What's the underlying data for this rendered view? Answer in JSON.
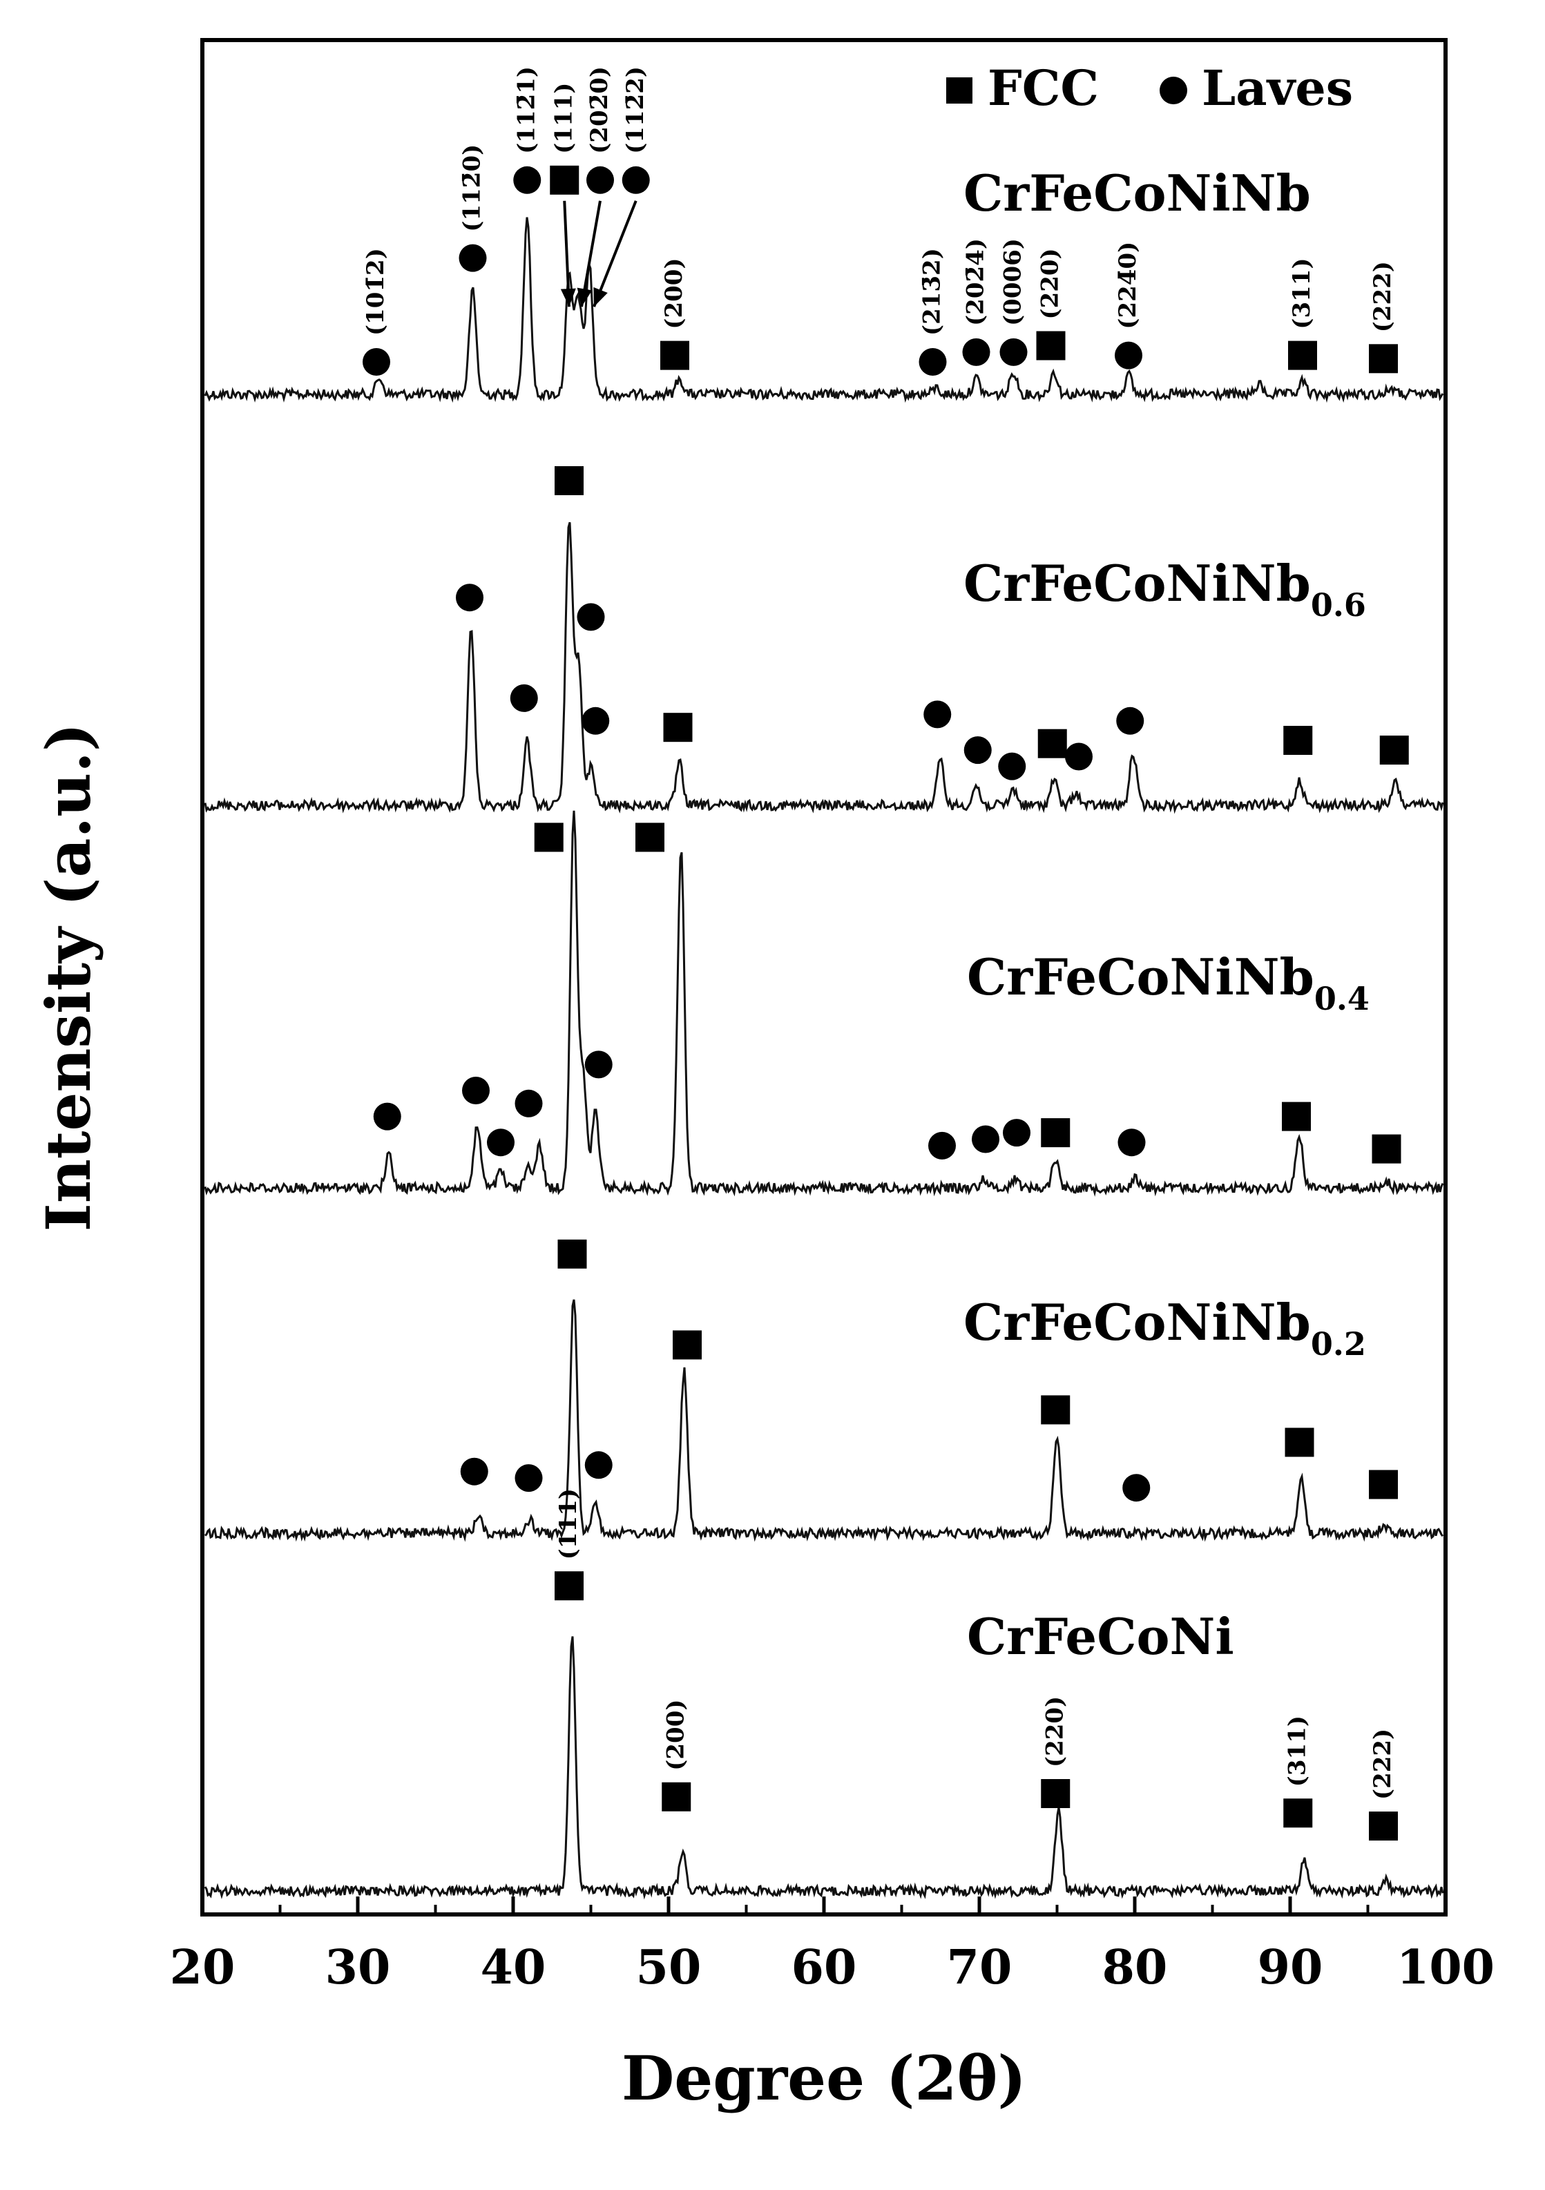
{
  "chart_data": {
    "type": "line",
    "xlabel": "Degree (2θ)",
    "ylabel": "Intensity (a.u.)",
    "xlim": [
      20,
      100
    ],
    "xticks": [
      "20",
      "30",
      "40",
      "50",
      "60",
      "70",
      "80",
      "90",
      "100"
    ],
    "xtick_values": [
      20,
      30,
      40,
      50,
      60,
      70,
      80,
      90,
      100
    ],
    "y_ticks_shown": false,
    "legend": {
      "placement": "top-right",
      "items": [
        {
          "marker": "square",
          "label": "FCC"
        },
        {
          "marker": "circle",
          "label": "Laves"
        }
      ]
    },
    "series": [
      {
        "name": "CrFeCoNiNb",
        "name_parts": {
          "base": "CrFeCoNiNb",
          "sub": ""
        },
        "peaks": [
          {
            "x": 31.4,
            "h": 0.05
          },
          {
            "x": 37.4,
            "h": 0.32
          },
          {
            "x": 40.9,
            "h": 0.55
          },
          {
            "x": 43.6,
            "h": 0.36
          },
          {
            "x": 44.2,
            "h": 0.3
          },
          {
            "x": 44.9,
            "h": 0.4
          },
          {
            "x": 50.7,
            "h": 0.05
          },
          {
            "x": 67.2,
            "h": 0.02
          },
          {
            "x": 69.8,
            "h": 0.05
          },
          {
            "x": 72.2,
            "h": 0.07
          },
          {
            "x": 74.8,
            "h": 0.07
          },
          {
            "x": 79.6,
            "h": 0.06
          },
          {
            "x": 88.0,
            "h": 0.03
          },
          {
            "x": 90.8,
            "h": 0.04
          },
          {
            "x": 96.5,
            "h": 0.02
          }
        ],
        "markers": [
          {
            "type": "circle",
            "x": 31.2,
            "y": 0.1,
            "label": "(101̄2)"
          },
          {
            "type": "circle",
            "x": 37.4,
            "y": 0.42,
            "label": "(112̄0)"
          },
          {
            "type": "circle",
            "x": 40.9,
            "y": 0.66,
            "label": "(112̄1)"
          },
          {
            "type": "square",
            "x": 43.3,
            "y": 0.66,
            "label": "(111)"
          },
          {
            "type": "circle",
            "x": 45.6,
            "y": 0.66,
            "label": "(202̄0)"
          },
          {
            "type": "circle",
            "x": 47.9,
            "y": 0.66,
            "label": "(112̄2)"
          },
          {
            "type": "square",
            "x": 50.4,
            "y": 0.12,
            "label": "(200)"
          },
          {
            "type": "circle",
            "x": 67.0,
            "y": 0.1,
            "label": "(213̄2)"
          },
          {
            "type": "circle",
            "x": 69.8,
            "y": 0.13,
            "label": "(202̄4)"
          },
          {
            "type": "circle",
            "x": 72.2,
            "y": 0.13,
            "label": "(0006)"
          },
          {
            "type": "square",
            "x": 74.6,
            "y": 0.15,
            "label": "(220)"
          },
          {
            "type": "circle",
            "x": 79.6,
            "y": 0.12,
            "label": "(224̄0)"
          },
          {
            "type": "square",
            "x": 90.8,
            "y": 0.12,
            "label": "(311)"
          },
          {
            "type": "square",
            "x": 96.0,
            "y": 0.11,
            "label": "(222)"
          }
        ],
        "arrows": [
          {
            "from_x": 43.3,
            "to_x": 43.6
          },
          {
            "from_x": 45.6,
            "to_x": 44.4
          },
          {
            "from_x": 47.9,
            "to_x": 45.2
          }
        ]
      },
      {
        "name": "CrFeCoNiNb0.6",
        "name_parts": {
          "base": "CrFeCoNiNb",
          "sub": "0.6"
        },
        "peaks": [
          {
            "x": 37.3,
            "h": 0.54
          },
          {
            "x": 40.9,
            "h": 0.2
          },
          {
            "x": 43.6,
            "h": 0.88
          },
          {
            "x": 44.2,
            "h": 0.45
          },
          {
            "x": 45.0,
            "h": 0.12
          },
          {
            "x": 50.7,
            "h": 0.13
          },
          {
            "x": 67.5,
            "h": 0.14
          },
          {
            "x": 69.8,
            "h": 0.06
          },
          {
            "x": 72.2,
            "h": 0.05
          },
          {
            "x": 74.8,
            "h": 0.08
          },
          {
            "x": 76.2,
            "h": 0.04
          },
          {
            "x": 79.9,
            "h": 0.16
          },
          {
            "x": 90.6,
            "h": 0.08
          },
          {
            "x": 96.8,
            "h": 0.07
          }
        ],
        "markers": [
          {
            "type": "circle",
            "x": 37.2,
            "y": 0.64
          },
          {
            "type": "square",
            "x": 43.6,
            "y": 1.0
          },
          {
            "type": "circle",
            "x": 45.0,
            "y": 0.58
          },
          {
            "type": "circle",
            "x": 40.7,
            "y": 0.33
          },
          {
            "type": "circle",
            "x": 45.3,
            "y": 0.26
          },
          {
            "type": "square",
            "x": 50.6,
            "y": 0.24
          },
          {
            "type": "circle",
            "x": 67.3,
            "y": 0.28
          },
          {
            "type": "circle",
            "x": 69.9,
            "y": 0.17
          },
          {
            "type": "circle",
            "x": 72.1,
            "y": 0.12
          },
          {
            "type": "square",
            "x": 74.7,
            "y": 0.19
          },
          {
            "type": "circle",
            "x": 76.4,
            "y": 0.15
          },
          {
            "type": "circle",
            "x": 79.7,
            "y": 0.26
          },
          {
            "type": "square",
            "x": 90.5,
            "y": 0.2
          },
          {
            "type": "square",
            "x": 96.7,
            "y": 0.17
          }
        ]
      },
      {
        "name": "CrFeCoNiNb0.4",
        "name_parts": {
          "base": "CrFeCoNiNb",
          "sub": "0.4"
        },
        "peaks": [
          {
            "x": 32.0,
            "h": 0.1
          },
          {
            "x": 37.7,
            "h": 0.19
          },
          {
            "x": 39.2,
            "h": 0.05
          },
          {
            "x": 41.0,
            "h": 0.07
          },
          {
            "x": 41.7,
            "h": 0.13
          },
          {
            "x": 43.9,
            "h": 1.16
          },
          {
            "x": 44.5,
            "h": 0.35
          },
          {
            "x": 45.3,
            "h": 0.24
          },
          {
            "x": 50.8,
            "h": 1.04
          },
          {
            "x": 70.3,
            "h": 0.03
          },
          {
            "x": 72.3,
            "h": 0.03
          },
          {
            "x": 74.9,
            "h": 0.09
          },
          {
            "x": 80.0,
            "h": 0.03
          },
          {
            "x": 90.6,
            "h": 0.16
          },
          {
            "x": 96.2,
            "h": 0.02
          }
        ],
        "markers": [
          {
            "type": "circle",
            "x": 31.9,
            "y": 0.22
          },
          {
            "type": "circle",
            "x": 37.6,
            "y": 0.3
          },
          {
            "type": "circle",
            "x": 39.2,
            "y": 0.14
          },
          {
            "type": "circle",
            "x": 41.0,
            "y": 0.26
          },
          {
            "type": "square",
            "x": 42.3,
            "y": 1.08
          },
          {
            "type": "square",
            "x": 48.8,
            "y": 1.08
          },
          {
            "type": "circle",
            "x": 45.5,
            "y": 0.38
          },
          {
            "type": "circle",
            "x": 67.6,
            "y": 0.13
          },
          {
            "type": "circle",
            "x": 70.4,
            "y": 0.15
          },
          {
            "type": "circle",
            "x": 72.4,
            "y": 0.17
          },
          {
            "type": "square",
            "x": 74.9,
            "y": 0.17
          },
          {
            "type": "circle",
            "x": 79.8,
            "y": 0.14
          },
          {
            "type": "square",
            "x": 90.4,
            "y": 0.22
          },
          {
            "type": "square",
            "x": 96.2,
            "y": 0.12
          }
        ]
      },
      {
        "name": "CrFeCoNiNb0.2",
        "name_parts": {
          "base": "CrFeCoNiNb",
          "sub": "0.2"
        },
        "peaks": [
          {
            "x": 37.8,
            "h": 0.06
          },
          {
            "x": 41.1,
            "h": 0.04
          },
          {
            "x": 43.9,
            "h": 0.73
          },
          {
            "x": 45.3,
            "h": 0.1
          },
          {
            "x": 51.0,
            "h": 0.5
          },
          {
            "x": 75.0,
            "h": 0.3
          },
          {
            "x": 90.7,
            "h": 0.17
          },
          {
            "x": 96.0,
            "h": 0.02
          }
        ],
        "markers": [
          {
            "type": "circle",
            "x": 37.5,
            "y": 0.19
          },
          {
            "type": "circle",
            "x": 41.0,
            "y": 0.17
          },
          {
            "type": "square",
            "x": 43.8,
            "y": 0.86
          },
          {
            "type": "circle",
            "x": 45.5,
            "y": 0.21
          },
          {
            "type": "square",
            "x": 51.2,
            "y": 0.58
          },
          {
            "type": "square",
            "x": 74.9,
            "y": 0.38
          },
          {
            "type": "circle",
            "x": 80.1,
            "y": 0.14
          },
          {
            "type": "square",
            "x": 90.6,
            "y": 0.28
          },
          {
            "type": "square",
            "x": 96.0,
            "y": 0.15
          }
        ]
      },
      {
        "name": "CrFeCoNi",
        "name_parts": {
          "base": "CrFeCoNi",
          "sub": ""
        },
        "peaks": [
          {
            "x": 43.8,
            "h": 0.78
          },
          {
            "x": 50.9,
            "h": 0.12
          },
          {
            "x": 75.1,
            "h": 0.25
          },
          {
            "x": 90.9,
            "h": 0.09
          },
          {
            "x": 96.2,
            "h": 0.03
          }
        ],
        "markers": [
          {
            "type": "square",
            "x": 43.6,
            "y": 0.94,
            "label": "(111)"
          },
          {
            "type": "square",
            "x": 50.5,
            "y": 0.29,
            "label": "(200)"
          },
          {
            "type": "square",
            "x": 74.9,
            "y": 0.3,
            "label": "(220)"
          },
          {
            "type": "square",
            "x": 90.5,
            "y": 0.24,
            "label": "(311)"
          },
          {
            "type": "square",
            "x": 96.0,
            "y": 0.2,
            "label": "(222)"
          }
        ]
      }
    ]
  }
}
